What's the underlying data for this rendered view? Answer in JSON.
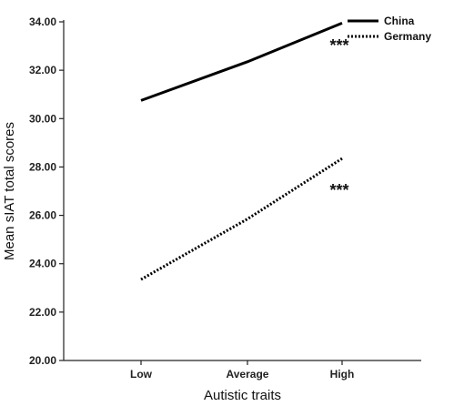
{
  "chart_data": {
    "type": "line",
    "title": "",
    "xlabel": "Autistic traits",
    "ylabel": "Mean sIAT total scores",
    "categories": [
      "Low",
      "Average",
      "High"
    ],
    "ylim": [
      20,
      34
    ],
    "yticks": [
      "20.00",
      "22.00",
      "24.00",
      "26.00",
      "28.00",
      "30.00",
      "32.00",
      "34.00"
    ],
    "grid": false,
    "legend_position": "top-right",
    "series": [
      {
        "name": "China",
        "values": [
          30.75,
          32.35,
          33.95
        ],
        "line_style": "solid",
        "color": "#000000",
        "annotation": "***"
      },
      {
        "name": "Germany",
        "values": [
          23.35,
          25.85,
          28.35
        ],
        "line_style": "dotted",
        "color": "#000000",
        "annotation": "***"
      }
    ]
  }
}
